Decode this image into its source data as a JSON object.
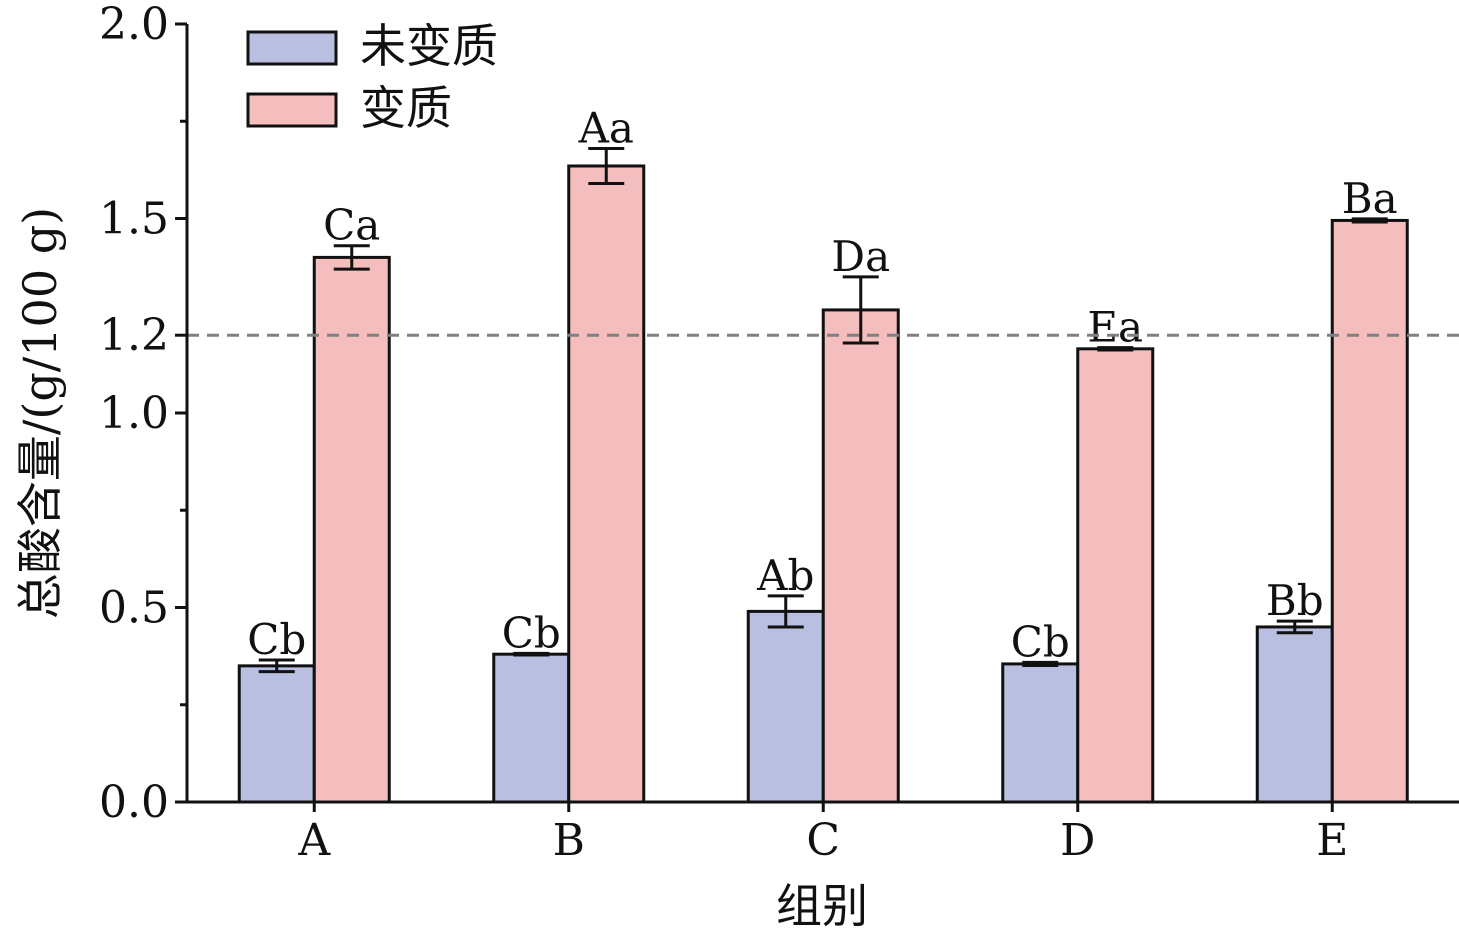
{
  "chart_data": {
    "type": "bar",
    "xlabel": "组别",
    "ylabel": "总酸含量/(g/100 g)",
    "categories": [
      "A",
      "B",
      "C",
      "D",
      "E"
    ],
    "ylim": [
      0,
      2.0
    ],
    "yticks": [
      0.0,
      0.5,
      1.0,
      1.2,
      1.5,
      2.0
    ],
    "ytick_labels": [
      "0.0",
      "0.5",
      "1.0",
      "1.2",
      "1.5",
      "2.0"
    ],
    "reference_line": {
      "y": 1.2,
      "style": "dashed",
      "color": "#808080"
    },
    "legend_position": "top-left",
    "grid": false,
    "series": [
      {
        "name": "未变质",
        "color": "#b8bfe0",
        "values": [
          0.35,
          0.38,
          0.49,
          0.355,
          0.45
        ],
        "errors": [
          0.015,
          0.002,
          0.04,
          0.004,
          0.015
        ],
        "labels": [
          "Cb",
          "Cb",
          "Ab",
          "Cb",
          "Bb"
        ]
      },
      {
        "name": "变质",
        "color": "#f4bebe",
        "values": [
          1.4,
          1.635,
          1.265,
          1.165,
          1.495
        ],
        "errors": [
          0.03,
          0.045,
          0.085,
          0.003,
          0.004
        ],
        "labels": [
          "Ca",
          "Aa",
          "Da",
          "Ea",
          "Ba"
        ]
      }
    ]
  }
}
